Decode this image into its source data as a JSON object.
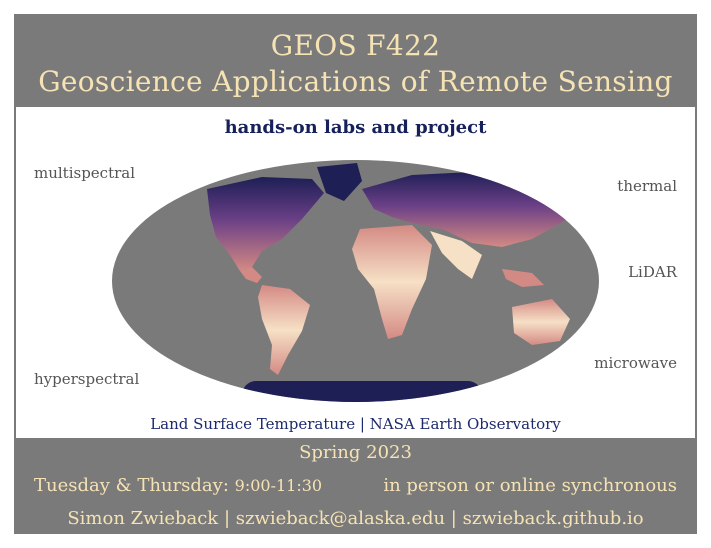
{
  "header": {
    "course_code": "GEOS F422",
    "course_title": "Geoscience Applications of Remote Sensing"
  },
  "main": {
    "subtitle": "hands-on labs and project",
    "left_labels": [
      "multispectral",
      "hyperspectral"
    ],
    "right_labels": [
      "thermal",
      "LiDAR",
      "microwave"
    ],
    "caption": "Land Surface Temperature | NASA Earth Observatory",
    "map_image": "world-map-land-surface-temperature",
    "colors": {
      "ocean": "#7a7a7a",
      "hot": "#f6e0c6",
      "warm": "#d48a84",
      "cool": "#6a3f86",
      "cold": "#1d1f55"
    }
  },
  "footer": {
    "term": "Spring 2023",
    "days": "Tuesday & Thursday:",
    "time": "9:00-11:30",
    "mode": "in person or online synchronous",
    "contact": "Simon Zwieback | szwieback@alaska.edu | szwieback.github.io"
  }
}
